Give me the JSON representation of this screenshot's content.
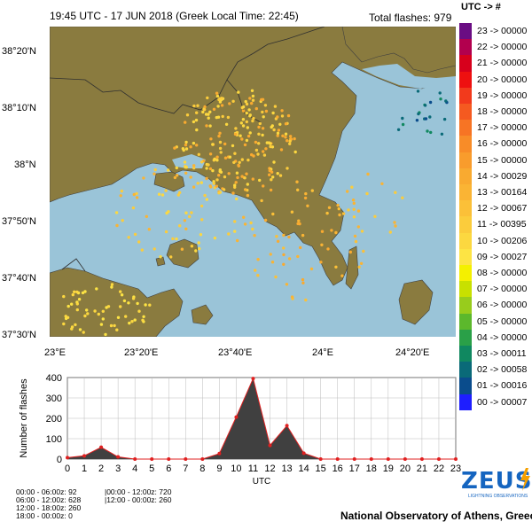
{
  "header": {
    "title": "19:45 UTC - 17  JUN 2018 (Greek Local Time: 22:45)",
    "total_flashes": "Total flashes: 979",
    "legend_header": "UTC    ->    #"
  },
  "map": {
    "lat_labels": [
      "38°20'N",
      "38°10'N",
      "38°N",
      "37°50'N",
      "37°40'N",
      "37°30'N"
    ],
    "lon_labels": [
      "23°E",
      "23°20'E",
      "23°40'E",
      "24°E",
      "24°20'E"
    ],
    "colors": {
      "sea": "#9ac4d8",
      "land": "#8a7b3f",
      "border": "#303030"
    }
  },
  "legend": [
    {
      "label": "23 -> 00000",
      "color": "#6a0d83"
    },
    {
      "label": "22 -> 00000",
      "color": "#b2004e"
    },
    {
      "label": "21 -> 00000",
      "color": "#d7001c"
    },
    {
      "label": "20 -> 00000",
      "color": "#ee1010"
    },
    {
      "label": "19 -> 00000",
      "color": "#f23a1c"
    },
    {
      "label": "18 -> 00000",
      "color": "#f55a20"
    },
    {
      "label": "17 -> 00000",
      "color": "#f77424"
    },
    {
      "label": "16 -> 00000",
      "color": "#f88c28"
    },
    {
      "label": "15 -> 00000",
      "color": "#f99c2c"
    },
    {
      "label": "14 -> 00029",
      "color": "#f9aa30"
    },
    {
      "label": "13 -> 00164",
      "color": "#fab434"
    },
    {
      "label": "12 -> 00067",
      "color": "#fbc038"
    },
    {
      "label": "11 -> 00395",
      "color": "#fbcc3c"
    },
    {
      "label": "10 -> 00206",
      "color": "#fcd840"
    },
    {
      "label": "09 -> 00027",
      "color": "#fde444"
    },
    {
      "label": "08 -> 00000",
      "color": "#f4f000"
    },
    {
      "label": "07 -> 00000",
      "color": "#c8e000"
    },
    {
      "label": "06 -> 00000",
      "color": "#98cc1c"
    },
    {
      "label": "05 -> 00000",
      "color": "#5cb82c"
    },
    {
      "label": "04 -> 00000",
      "color": "#2aa048"
    },
    {
      "label": "03 -> 00011",
      "color": "#108860"
    },
    {
      "label": "02 -> 00058",
      "color": "#0a6a78"
    },
    {
      "label": "01 -> 00016",
      "color": "#0a4c8c"
    },
    {
      "label": "00 -> 00007",
      "color": "#1e1eff"
    }
  ],
  "chart_data": {
    "type": "area",
    "x": [
      0,
      1,
      2,
      3,
      4,
      5,
      6,
      7,
      8,
      9,
      10,
      11,
      12,
      13,
      14,
      15,
      16,
      17,
      18,
      19,
      20,
      21,
      22,
      23
    ],
    "values": [
      7,
      16,
      58,
      11,
      0,
      0,
      0,
      0,
      0,
      27,
      206,
      395,
      67,
      164,
      29,
      0,
      0,
      0,
      0,
      0,
      0,
      0,
      0,
      0
    ],
    "ylabel": "Number of flashes",
    "xlabel": "UTC",
    "ylim": [
      0,
      400
    ],
    "yticks": [
      "0",
      "100",
      "200",
      "300",
      "400"
    ],
    "xlim": [
      0,
      23
    ],
    "grid": true
  },
  "stats": {
    "left": [
      "00:00 - 06:00z: 92",
      "06:00 - 12:00z: 628",
      "12:00 - 18:00z: 260",
      "18:00 - 00:00z: 0"
    ],
    "right": [
      "|00:00 - 12:00z: 720",
      "|12:00 - 00:00z: 260"
    ]
  },
  "branding": {
    "logo": "ZEUS",
    "logo_sub": "LIGHTNING OBSERVATIONS",
    "footer": "National Observatory of Athens, Greece"
  }
}
